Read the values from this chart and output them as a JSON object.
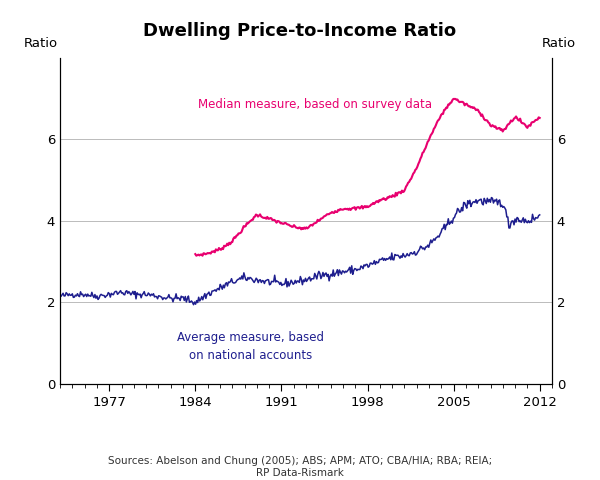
{
  "title": "Dwelling Price-to-Income Ratio",
  "ylabel_left": "Ratio",
  "ylabel_right": "Ratio",
  "ylim": [
    0,
    8
  ],
  "yticks": [
    0,
    2,
    4,
    6
  ],
  "xticks_years": [
    1977,
    1984,
    1991,
    1998,
    2005,
    2012
  ],
  "source_text": "Sources: Abelson and Chung (2005); ABS; APM; ATO; CBA/HIA; RBA; REIA;\nRP Data-Rismark",
  "median_color": "#E8006F",
  "average_color": "#1E1E8E",
  "median_label": "Median measure, based on survey data",
  "average_label_line1": "Average measure, based",
  "average_label_line2": "on national accounts",
  "background_color": "#ffffff",
  "grid_color": "#bbbbbb",
  "median_data_years": [
    1984,
    1985,
    1986,
    1987,
    1988,
    1989,
    1990,
    1991,
    1992,
    1993,
    1994,
    1995,
    1996,
    1997,
    1998,
    1999,
    2000,
    2001,
    2002,
    2003,
    2004,
    2005,
    2006,
    2007,
    2008,
    2009,
    2010,
    2011,
    2012
  ],
  "median_data_values": [
    3.15,
    3.2,
    3.3,
    3.5,
    3.85,
    4.15,
    4.05,
    3.95,
    3.85,
    3.8,
    4.0,
    4.2,
    4.3,
    4.3,
    4.35,
    4.5,
    4.6,
    4.75,
    5.3,
    6.0,
    6.6,
    7.0,
    6.85,
    6.7,
    6.35,
    6.2,
    6.55,
    6.3,
    6.55
  ],
  "avg_keypoints_t": [
    1973,
    1974,
    1975,
    1976,
    1977,
    1978,
    1979,
    1980,
    1981,
    1982,
    1983,
    1983.5,
    1984,
    1984.5,
    1985,
    1986,
    1987,
    1988,
    1989,
    1990,
    1991,
    1992,
    1993,
    1994,
    1995,
    1996,
    1997,
    1998,
    1999,
    2000,
    2001,
    2002,
    2003,
    2004,
    2005,
    2006,
    2007,
    2008,
    2009,
    2009.5,
    2010,
    2011,
    2012
  ],
  "avg_keypoints_v": [
    2.15,
    2.2,
    2.2,
    2.15,
    2.2,
    2.25,
    2.2,
    2.2,
    2.15,
    2.1,
    2.1,
    2.05,
    2.0,
    2.1,
    2.2,
    2.35,
    2.5,
    2.6,
    2.55,
    2.5,
    2.45,
    2.5,
    2.55,
    2.65,
    2.7,
    2.75,
    2.8,
    2.9,
    3.0,
    3.1,
    3.15,
    3.25,
    3.4,
    3.7,
    4.1,
    4.4,
    4.5,
    4.45,
    4.45,
    3.9,
    4.05,
    4.0,
    4.1
  ]
}
